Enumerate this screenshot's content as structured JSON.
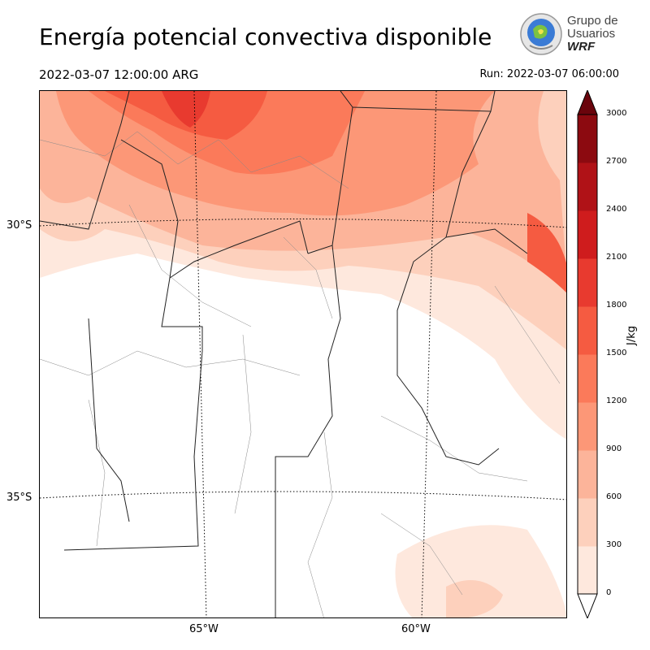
{
  "header": {
    "title": "Energía potencial convectiva disponible",
    "valid_time": "2022-03-07 12:00:00 ARG",
    "run_time": "Run: 2022-03-07 06:00:00"
  },
  "logo": {
    "line1": "Grupo de",
    "line2": "Usuarios",
    "line3": "WRF"
  },
  "map": {
    "lat_labels": [
      "30°S",
      "35°S"
    ],
    "lon_labels": [
      "65°W",
      "60°W"
    ]
  },
  "colorbar": {
    "unit": "J/kg",
    "ticks": [
      "0",
      "300",
      "600",
      "900",
      "1200",
      "1500",
      "1800",
      "2100",
      "2400",
      "2700",
      "3000"
    ],
    "colors": [
      "#fee8dd",
      "#fdd0bc",
      "#fcb49a",
      "#fc9777",
      "#fb7a5a",
      "#f55b41",
      "#e83a2f",
      "#cf1c1d",
      "#b01217",
      "#8c0a10"
    ],
    "extend_color": "#6a040c"
  }
}
